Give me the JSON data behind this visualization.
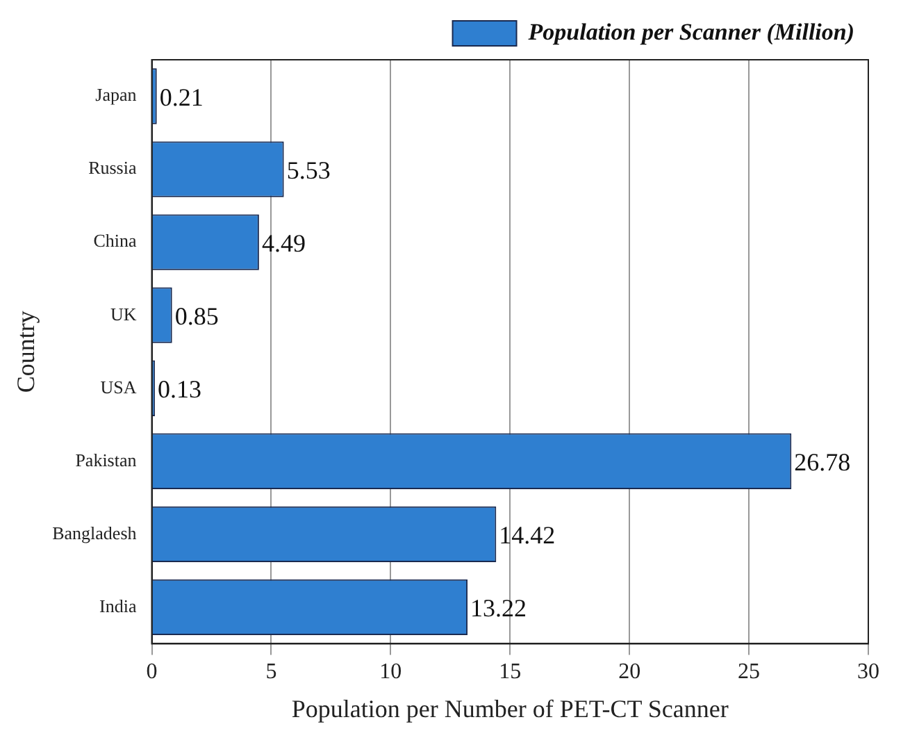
{
  "chart_data": {
    "type": "bar",
    "orientation": "horizontal",
    "xlabel": "Population per Number of PET-CT Scanner",
    "ylabel": "Country",
    "categories": [
      "Japan",
      "Russia",
      "China",
      "UK",
      "USA",
      "Pakistan",
      "Bangladesh",
      "India"
    ],
    "series": [
      {
        "name": "Population per Scanner (Million)",
        "color": "#2f7fd0",
        "values": [
          0.21,
          5.53,
          4.49,
          0.85,
          0.13,
          26.78,
          14.42,
          13.22
        ]
      }
    ],
    "xlim": [
      0,
      30
    ],
    "xticks": [
      0,
      5,
      10,
      15,
      20,
      25,
      30
    ],
    "grid": "x",
    "legend": "top right",
    "data_labels": true
  }
}
